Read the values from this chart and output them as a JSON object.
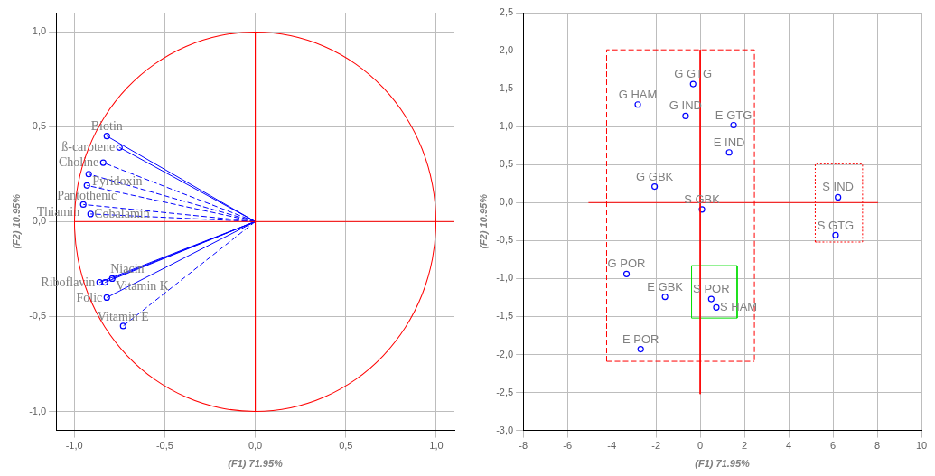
{
  "chart_data": [
    {
      "type": "line",
      "xlabel": "(F1) 71.95%",
      "ylabel": "(F2) 10.95%",
      "xlim": [
        -1.1,
        1.1
      ],
      "ylim": [
        -1.1,
        1.1
      ],
      "xticks": [
        {
          "value": -1,
          "label": "-1,0"
        },
        {
          "value": -0.5,
          "label": "-0,5"
        },
        {
          "value": 0,
          "label": "0,0"
        },
        {
          "value": 0.5,
          "label": "0,5"
        },
        {
          "value": 1,
          "label": "1,0"
        }
      ],
      "yticks": [
        {
          "value": -1,
          "label": "-1,0"
        },
        {
          "value": -0.5,
          "label": "-0,5"
        },
        {
          "value": 0,
          "label": "0,0"
        },
        {
          "value": 0.5,
          "label": "0,5"
        },
        {
          "value": 1,
          "label": "1,0"
        }
      ],
      "grid": true,
      "legend": false,
      "series": [
        {
          "color": "#ff0000",
          "marker": "none",
          "x": [
            0,
            0
          ],
          "values": [
            1,
            -1
          ]
        },
        {
          "color": "#ff0000",
          "marker": "none",
          "x": [
            -1,
            1.1
          ],
          "values": [
            0,
            0
          ]
        },
        {
          "name": "Biotin",
          "color": "#0000ff",
          "marker": "circle",
          "line_style": "solid",
          "x": [
            0,
            -0.82
          ],
          "values": [
            0,
            0.45
          ]
        },
        {
          "name": "ß-carotene",
          "color": "#0000ff",
          "marker": "circle",
          "line_style": "solid",
          "x": [
            0,
            -0.75
          ],
          "values": [
            0,
            0.39
          ]
        },
        {
          "name": "Choline",
          "color": "#0000ff",
          "marker": "circle",
          "line_style": "dashed",
          "x": [
            0,
            -0.84
          ],
          "values": [
            0,
            0.31
          ]
        },
        {
          "name": "Pyridoxin",
          "color": "#0000ff",
          "marker": "circle",
          "line_style": "dashed",
          "x": [
            0,
            -0.92
          ],
          "values": [
            0,
            0.25
          ]
        },
        {
          "name": "Pantothenic",
          "color": "#0000ff",
          "marker": "circle",
          "line_style": "dashed",
          "x": [
            0,
            -0.93
          ],
          "values": [
            0,
            0.19
          ]
        },
        {
          "name": "Thiamin",
          "color": "#0000ff",
          "marker": "circle",
          "line_style": "dashed",
          "x": [
            0,
            -0.95
          ],
          "values": [
            0,
            0.09
          ]
        },
        {
          "name": "Cobalamin",
          "color": "#0000ff",
          "marker": "circle",
          "line_style": "dashed",
          "x": [
            0,
            -0.91
          ],
          "values": [
            0,
            0.04
          ]
        },
        {
          "name": "Riboflavin",
          "color": "#0000ff",
          "marker": "circle",
          "line_style": "solid",
          "x": [
            0,
            -0.86
          ],
          "values": [
            0,
            -0.32
          ]
        },
        {
          "name": "Niacin",
          "color": "#0000ff",
          "marker": "circle",
          "line_style": "solid",
          "x": [
            0,
            -0.83
          ],
          "values": [
            0,
            -0.32
          ]
        },
        {
          "name": "Vitamin K",
          "color": "#0000ff",
          "marker": "circle",
          "line_style": "solid",
          "x": [
            0,
            -0.79
          ],
          "values": [
            0,
            -0.3
          ]
        },
        {
          "name": "Folic",
          "color": "#0000ff",
          "marker": "circle",
          "line_style": "solid",
          "x": [
            0,
            -0.82
          ],
          "values": [
            0,
            -0.4
          ]
        },
        {
          "name": "Vitamin E",
          "color": "#0000ff",
          "marker": "circle",
          "line_style": "dashed",
          "x": [
            0,
            -0.73
          ],
          "values": [
            0,
            -0.55
          ]
        }
      ]
    },
    {
      "type": "scatter",
      "xlabel": "(F1) 71.95%",
      "ylabel": "(F2) 10.95%",
      "xlim": [
        -8,
        10
      ],
      "ylim": [
        -3,
        2.5
      ],
      "xticks": [
        -8,
        -6,
        -4,
        -2,
        0,
        2,
        4,
        6,
        8,
        10
      ],
      "yticks": [
        {
          "value": -3,
          "label": "-3,0"
        },
        {
          "value": -2.5,
          "label": "-2,5"
        },
        {
          "value": -2,
          "label": "-2,0"
        },
        {
          "value": -1.5,
          "label": "-1,5"
        },
        {
          "value": -1,
          "label": "-1,0"
        },
        {
          "value": -0.5,
          "label": "-0,5"
        },
        {
          "value": 0,
          "label": "0,0"
        },
        {
          "value": 0.5,
          "label": "0,5"
        },
        {
          "value": 1,
          "label": "1,0"
        },
        {
          "value": 1.5,
          "label": "1,5"
        },
        {
          "value": 2,
          "label": "2,0"
        },
        {
          "value": 2.5,
          "label": "2,5"
        }
      ],
      "grid": true,
      "legend": false,
      "series": [
        {
          "type": "line",
          "color": "#ff0000",
          "marker": "none",
          "line_style": "solid",
          "x": [
            -5.05,
            8.04
          ],
          "values": [
            0,
            0
          ]
        },
        {
          "type": "line",
          "color": "#ff0000",
          "marker": "none",
          "line_style": "solid",
          "x": [
            0,
            0
          ],
          "values": [
            2.01,
            -2.52
          ]
        },
        {
          "type": "line",
          "color": "#ff0000",
          "marker": "none",
          "line_style": "dashed",
          "x": [
            -4.23,
            -4.23,
            2.45,
            2.45
          ],
          "values": [
            -2.09,
            2.01,
            2.01,
            -2.09
          ]
        },
        {
          "type": "line",
          "color": "#ff0000",
          "marker": "none",
          "line_style": "dashed",
          "x": [
            -4.23,
            2.45
          ],
          "values": [
            -2.09,
            -2.09
          ]
        },
        {
          "type": "line",
          "color": "#ff0000",
          "marker": "none",
          "line_style": "dotted",
          "x": [
            5.2,
            5.2,
            7.34,
            7.34
          ],
          "values": [
            -0.52,
            0.51,
            0.51,
            -0.52
          ]
        },
        {
          "type": "line",
          "color": "#ff0000",
          "marker": "none",
          "line_style": "dotted",
          "x": [
            5.2,
            7.34
          ],
          "values": [
            -0.52,
            -0.52
          ]
        },
        {
          "type": "line",
          "color": "#00dd00",
          "marker": "none",
          "line_style": "solid",
          "x": [
            -0.39,
            -0.39,
            1.67,
            1.67
          ],
          "values": [
            -1.52,
            -0.83,
            -0.83,
            -1.52
          ]
        },
        {
          "type": "line",
          "color": "#00dd00",
          "marker": "none",
          "line_style": "solid",
          "x": [
            -0.39,
            1.67
          ],
          "values": [
            -1.52,
            -1.52
          ]
        },
        {
          "color": "#0000ff",
          "marker": "circle",
          "x": [
            -0.32,
            -2.82,
            -0.66,
            1.51,
            1.31,
            -2.06,
            0.08,
            -3.33,
            -1.59,
            0.5,
            0.73,
            -2.69,
            6.23,
            6.12
          ],
          "values": [
            1.56,
            1.29,
            1.14,
            1.02,
            0.66,
            0.21,
            -0.09,
            -0.94,
            -1.24,
            -1.27,
            -1.38,
            -1.93,
            0.07,
            -0.43
          ]
        }
      ],
      "annotations": [
        {
          "text": "G GTG",
          "x": -0.32,
          "y": 1.56
        },
        {
          "text": "G HAM",
          "x": -2.82,
          "y": 1.29
        },
        {
          "text": "G IND",
          "x": -0.66,
          "y": 1.14
        },
        {
          "text": "E GTG",
          "x": 1.51,
          "y": 1.02
        },
        {
          "text": "E IND",
          "x": 1.31,
          "y": 0.66
        },
        {
          "text": "G GBK",
          "x": -2.06,
          "y": 0.21
        },
        {
          "text": "S GBK",
          "x": 0.08,
          "y": -0.09
        },
        {
          "text": "G POR",
          "x": -3.33,
          "y": -0.94
        },
        {
          "text": "E GBK",
          "x": -1.59,
          "y": -1.24
        },
        {
          "text": "S POR",
          "x": 0.5,
          "y": -1.27
        },
        {
          "text": "S HAM",
          "x": 0.73,
          "y": -1.38
        },
        {
          "text": "E POR",
          "x": -2.69,
          "y": -1.93
        },
        {
          "text": "S IND",
          "x": 6.23,
          "y": 0.07
        },
        {
          "text": "S GTG",
          "x": 6.12,
          "y": -0.43
        }
      ]
    }
  ]
}
